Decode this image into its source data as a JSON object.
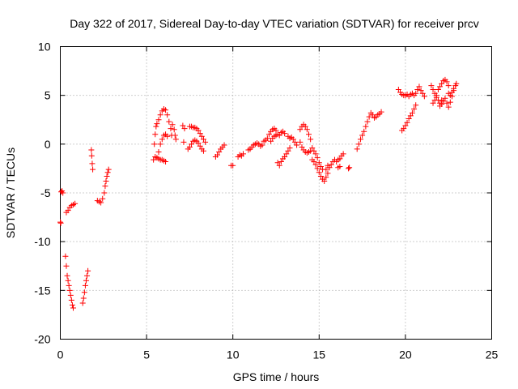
{
  "chart_data": {
    "type": "scatter",
    "title": "Day 322 of 2017, Sidereal Day-to-day VTEC variation (SDTVAR) for receiver prcv",
    "xlabel": "GPS time / hours",
    "ylabel": "SDTVAR / TECUs",
    "xlim": [
      0,
      25
    ],
    "ylim": [
      -20,
      10
    ],
    "xticks": [
      0,
      5,
      10,
      15,
      20,
      25
    ],
    "yticks": [
      -20,
      -15,
      -10,
      -5,
      0,
      5,
      10
    ],
    "grid": true,
    "marker": "+",
    "color": "#ff0000",
    "series": [
      {
        "name": "SDTVAR",
        "points": [
          [
            0.0,
            -8.0
          ],
          [
            0.03,
            -8.1
          ],
          [
            0.05,
            -4.9
          ],
          [
            0.1,
            -4.8
          ],
          [
            0.15,
            -5.0
          ],
          [
            0.3,
            -11.5
          ],
          [
            0.35,
            -12.5
          ],
          [
            0.4,
            -13.5
          ],
          [
            0.45,
            -14.0
          ],
          [
            0.5,
            -14.5
          ],
          [
            0.55,
            -15.0
          ],
          [
            0.6,
            -15.5
          ],
          [
            0.65,
            -16.0
          ],
          [
            0.7,
            -16.5
          ],
          [
            0.75,
            -16.8
          ],
          [
            0.35,
            -7.0
          ],
          [
            0.45,
            -6.8
          ],
          [
            0.55,
            -6.5
          ],
          [
            0.65,
            -6.3
          ],
          [
            0.75,
            -6.2
          ],
          [
            0.85,
            -6.1
          ],
          [
            1.3,
            -16.3
          ],
          [
            1.35,
            -15.8
          ],
          [
            1.4,
            -15.2
          ],
          [
            1.45,
            -14.5
          ],
          [
            1.5,
            -14.0
          ],
          [
            1.55,
            -13.5
          ],
          [
            1.6,
            -13.0
          ],
          [
            1.8,
            -0.6
          ],
          [
            1.82,
            -1.2
          ],
          [
            1.85,
            -2.0
          ],
          [
            1.88,
            -2.6
          ],
          [
            2.15,
            -5.8
          ],
          [
            2.25,
            -5.9
          ],
          [
            2.35,
            -6.0
          ],
          [
            2.45,
            -5.6
          ],
          [
            2.55,
            -5.0
          ],
          [
            2.6,
            -4.3
          ],
          [
            2.65,
            -3.8
          ],
          [
            2.7,
            -3.3
          ],
          [
            2.75,
            -2.9
          ],
          [
            2.8,
            -2.6
          ],
          [
            5.4,
            -1.6
          ],
          [
            5.45,
            0.0
          ],
          [
            5.5,
            1.0
          ],
          [
            5.55,
            1.8
          ],
          [
            5.6,
            2.1
          ],
          [
            5.7,
            2.5
          ],
          [
            5.8,
            3.0
          ],
          [
            5.9,
            3.4
          ],
          [
            6.0,
            3.6
          ],
          [
            6.1,
            3.5
          ],
          [
            6.2,
            3.0
          ],
          [
            6.3,
            2.3
          ],
          [
            6.4,
            1.6
          ],
          [
            6.45,
            0.9
          ],
          [
            5.5,
            -1.3
          ],
          [
            5.6,
            -1.4
          ],
          [
            5.7,
            -1.5
          ],
          [
            5.8,
            -1.6
          ],
          [
            5.9,
            -1.6
          ],
          [
            6.0,
            -1.7
          ],
          [
            6.1,
            -1.8
          ],
          [
            5.7,
            -0.8
          ],
          [
            5.8,
            0.0
          ],
          [
            5.9,
            0.5
          ],
          [
            6.0,
            0.9
          ],
          [
            6.1,
            1.0
          ],
          [
            6.2,
            0.8
          ],
          [
            6.5,
            2.0
          ],
          [
            6.6,
            1.5
          ],
          [
            6.65,
            0.9
          ],
          [
            6.7,
            0.5
          ],
          [
            7.1,
            1.9
          ],
          [
            7.2,
            1.6
          ],
          [
            7.15,
            0.2
          ],
          [
            7.5,
            1.8
          ],
          [
            7.6,
            1.8
          ],
          [
            7.7,
            1.7
          ],
          [
            7.8,
            1.7
          ],
          [
            7.9,
            1.6
          ],
          [
            8.0,
            1.4
          ],
          [
            8.1,
            1.1
          ],
          [
            8.2,
            0.8
          ],
          [
            8.3,
            0.5
          ],
          [
            8.4,
            0.2
          ],
          [
            7.4,
            -0.5
          ],
          [
            7.5,
            -0.3
          ],
          [
            7.6,
            0.0
          ],
          [
            7.7,
            0.3
          ],
          [
            7.8,
            0.4
          ],
          [
            7.9,
            0.3
          ],
          [
            8.0,
            0.1
          ],
          [
            8.1,
            -0.2
          ],
          [
            8.2,
            -0.5
          ],
          [
            8.3,
            -0.7
          ],
          [
            9.0,
            -1.3
          ],
          [
            9.1,
            -1.1
          ],
          [
            9.2,
            -0.8
          ],
          [
            9.3,
            -0.5
          ],
          [
            9.4,
            -0.3
          ],
          [
            9.5,
            -0.1
          ],
          [
            9.9,
            -2.2
          ],
          [
            10.0,
            -2.2
          ],
          [
            10.3,
            -1.3
          ],
          [
            10.4,
            -1.1
          ],
          [
            10.5,
            -1.2
          ],
          [
            10.6,
            -1.0
          ],
          [
            10.9,
            -0.6
          ],
          [
            11.0,
            -0.5
          ],
          [
            11.1,
            -0.3
          ],
          [
            11.2,
            -0.1
          ],
          [
            11.3,
            0.0
          ],
          [
            11.4,
            0.1
          ],
          [
            11.5,
            0.0
          ],
          [
            11.6,
            -0.2
          ],
          [
            11.7,
            -0.1
          ],
          [
            11.8,
            0.3
          ],
          [
            11.9,
            0.4
          ],
          [
            12.0,
            0.6
          ],
          [
            12.1,
            1.0
          ],
          [
            12.2,
            1.3
          ],
          [
            12.3,
            1.5
          ],
          [
            12.4,
            1.6
          ],
          [
            12.5,
            1.4
          ],
          [
            12.6,
            1.0
          ],
          [
            12.7,
            0.9
          ],
          [
            12.8,
            1.2
          ],
          [
            12.9,
            1.3
          ],
          [
            13.0,
            1.1
          ],
          [
            12.2,
            0.3
          ],
          [
            12.3,
            0.6
          ],
          [
            12.4,
            0.8
          ],
          [
            12.5,
            0.9
          ],
          [
            12.6,
            -1.9
          ],
          [
            12.7,
            -2.2
          ],
          [
            12.8,
            -1.8
          ],
          [
            12.9,
            -1.5
          ],
          [
            13.0,
            -1.3
          ],
          [
            13.1,
            -1.0
          ],
          [
            13.2,
            -0.7
          ],
          [
            13.3,
            -0.4
          ],
          [
            13.2,
            0.8
          ],
          [
            13.3,
            0.6
          ],
          [
            13.4,
            0.7
          ],
          [
            13.5,
            0.5
          ],
          [
            13.6,
            0.2
          ],
          [
            13.7,
            -0.1
          ],
          [
            13.9,
            1.5
          ],
          [
            14.0,
            1.8
          ],
          [
            14.1,
            2.0
          ],
          [
            14.2,
            1.8
          ],
          [
            14.3,
            1.5
          ],
          [
            14.4,
            1.0
          ],
          [
            14.5,
            0.5
          ],
          [
            13.9,
            0.2
          ],
          [
            14.0,
            -0.3
          ],
          [
            14.1,
            -0.6
          ],
          [
            14.2,
            -0.8
          ],
          [
            14.3,
            -0.9
          ],
          [
            14.4,
            -0.8
          ],
          [
            14.5,
            -0.7
          ],
          [
            14.6,
            -0.4
          ],
          [
            14.7,
            -0.7
          ],
          [
            14.8,
            -1.0
          ],
          [
            14.9,
            -1.4
          ],
          [
            15.0,
            -1.9
          ],
          [
            15.1,
            -2.3
          ],
          [
            15.2,
            -2.6
          ],
          [
            14.6,
            -1.6
          ],
          [
            14.7,
            -1.8
          ],
          [
            14.8,
            -2.1
          ],
          [
            14.9,
            -2.5
          ],
          [
            15.0,
            -2.9
          ],
          [
            15.1,
            -3.3
          ],
          [
            15.2,
            -3.6
          ],
          [
            15.3,
            -3.8
          ],
          [
            15.4,
            -3.4
          ],
          [
            15.5,
            -3.0
          ],
          [
            15.4,
            -2.6
          ],
          [
            15.5,
            -2.2
          ],
          [
            15.6,
            -2.4
          ],
          [
            15.7,
            -2.1
          ],
          [
            15.8,
            -1.8
          ],
          [
            15.9,
            -1.6
          ],
          [
            16.0,
            -1.8
          ],
          [
            16.1,
            -1.6
          ],
          [
            16.2,
            -1.5
          ],
          [
            16.3,
            -1.2
          ],
          [
            16.4,
            -1.0
          ],
          [
            16.1,
            -2.4
          ],
          [
            16.2,
            -2.3
          ],
          [
            16.7,
            -2.5
          ],
          [
            16.75,
            -2.4
          ],
          [
            17.2,
            -0.5
          ],
          [
            17.3,
            0.0
          ],
          [
            17.4,
            0.5
          ],
          [
            17.5,
            0.9
          ],
          [
            17.6,
            1.3
          ],
          [
            17.7,
            1.8
          ],
          [
            17.8,
            2.3
          ],
          [
            17.9,
            2.8
          ],
          [
            18.0,
            3.2
          ],
          [
            18.1,
            3.0
          ],
          [
            18.2,
            2.7
          ],
          [
            18.3,
            2.8
          ],
          [
            18.4,
            3.0
          ],
          [
            18.5,
            3.1
          ],
          [
            18.6,
            3.3
          ],
          [
            19.6,
            5.6
          ],
          [
            19.7,
            5.3
          ],
          [
            19.8,
            5.1
          ],
          [
            19.9,
            5.0
          ],
          [
            20.0,
            5.0
          ],
          [
            20.1,
            5.1
          ],
          [
            20.2,
            4.9
          ],
          [
            20.3,
            5.1
          ],
          [
            20.4,
            5.2
          ],
          [
            20.5,
            5.0
          ],
          [
            19.8,
            1.4
          ],
          [
            19.9,
            1.6
          ],
          [
            20.0,
            1.9
          ],
          [
            20.1,
            2.2
          ],
          [
            20.2,
            2.6
          ],
          [
            20.3,
            2.9
          ],
          [
            20.4,
            3.2
          ],
          [
            20.5,
            3.6
          ],
          [
            20.6,
            4.0
          ],
          [
            20.6,
            5.2
          ],
          [
            20.7,
            5.6
          ],
          [
            20.8,
            5.9
          ],
          [
            20.9,
            5.5
          ],
          [
            21.0,
            5.2
          ],
          [
            21.1,
            4.9
          ],
          [
            21.5,
            6.0
          ],
          [
            21.6,
            5.6
          ],
          [
            21.7,
            5.2
          ],
          [
            21.8,
            4.8
          ],
          [
            21.9,
            4.5
          ],
          [
            22.0,
            4.2
          ],
          [
            22.1,
            4.5
          ],
          [
            21.6,
            4.2
          ],
          [
            21.7,
            4.5
          ],
          [
            21.8,
            5.0
          ],
          [
            21.9,
            5.6
          ],
          [
            22.0,
            5.9
          ],
          [
            22.1,
            6.2
          ],
          [
            22.2,
            6.5
          ],
          [
            22.3,
            6.6
          ],
          [
            22.4,
            6.4
          ],
          [
            22.5,
            6.0
          ],
          [
            22.0,
            3.9
          ],
          [
            22.1,
            4.1
          ],
          [
            22.2,
            4.4
          ],
          [
            22.3,
            4.7
          ],
          [
            22.4,
            4.2
          ],
          [
            22.5,
            3.8
          ],
          [
            22.6,
            4.3
          ],
          [
            22.7,
            4.9
          ],
          [
            22.8,
            5.5
          ],
          [
            22.9,
            6.0
          ],
          [
            22.95,
            6.2
          ],
          [
            22.5,
            5.2
          ],
          [
            22.6,
            5.0
          ],
          [
            22.7,
            5.3
          ],
          [
            22.8,
            5.7
          ]
        ]
      }
    ]
  }
}
